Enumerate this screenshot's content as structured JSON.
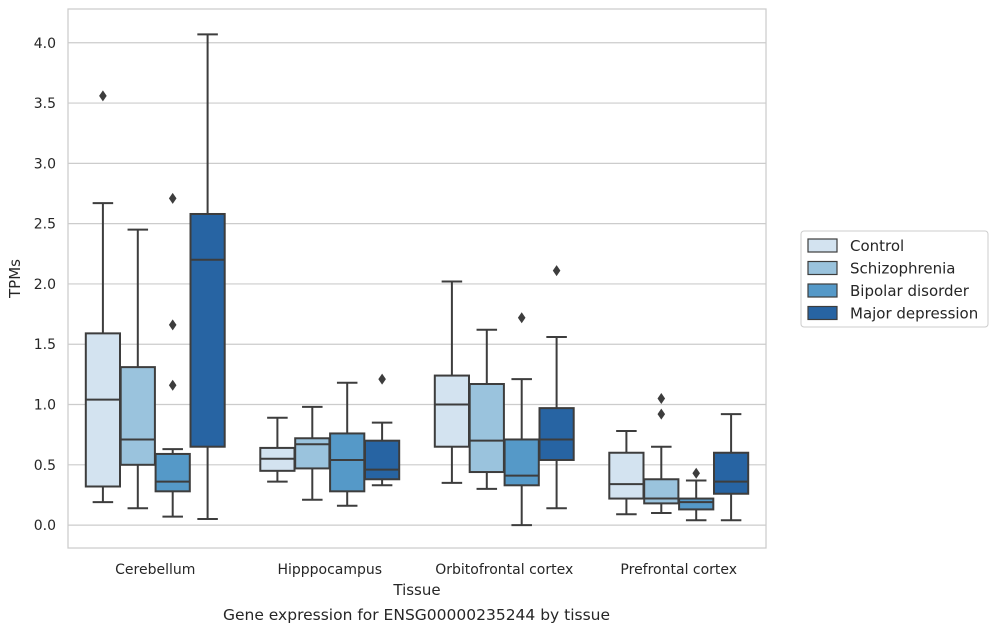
{
  "caption": "Gene expression for ENSG00000235244 by tissue",
  "chart_data": {
    "type": "boxplot",
    "xlabel": "Tissue",
    "ylabel": "TPMs",
    "ylim": [
      -0.19,
      4.28
    ],
    "yticks": [
      0.0,
      0.5,
      1.0,
      1.5,
      2.0,
      2.5,
      3.0,
      3.5,
      4.0
    ],
    "ytick_labels": [
      "0.0",
      "0.5",
      "1.0",
      "1.5",
      "2.0",
      "2.5",
      "3.0",
      "3.5",
      "4.0"
    ],
    "grid": "horizontal",
    "legend_placement": "right",
    "categories": [
      "Cerebellum",
      "Hipppocampus",
      "Orbitofrontal cortex",
      "Prefrontal cortex"
    ],
    "series": [
      {
        "name": "Control",
        "color": "#d3e3f0",
        "boxes": [
          {
            "whisker_low": 0.19,
            "q1": 0.32,
            "median": 1.04,
            "q3": 1.59,
            "whisker_high": 2.67,
            "outliers": [
              3.56
            ]
          },
          {
            "whisker_low": 0.36,
            "q1": 0.45,
            "median": 0.55,
            "q3": 0.64,
            "whisker_high": 0.89,
            "outliers": []
          },
          {
            "whisker_low": 0.35,
            "q1": 0.65,
            "median": 1.0,
            "q3": 1.24,
            "whisker_high": 2.02,
            "outliers": []
          },
          {
            "whisker_low": 0.09,
            "q1": 0.22,
            "median": 0.34,
            "q3": 0.6,
            "whisker_high": 0.78,
            "outliers": []
          }
        ]
      },
      {
        "name": "Schizophrenia",
        "color": "#9ac3dd",
        "boxes": [
          {
            "whisker_low": 0.14,
            "q1": 0.5,
            "median": 0.71,
            "q3": 1.31,
            "whisker_high": 2.45,
            "outliers": []
          },
          {
            "whisker_low": 0.21,
            "q1": 0.47,
            "median": 0.67,
            "q3": 0.72,
            "whisker_high": 0.98,
            "outliers": []
          },
          {
            "whisker_low": 0.3,
            "q1": 0.44,
            "median": 0.7,
            "q3": 1.17,
            "whisker_high": 1.62,
            "outliers": []
          },
          {
            "whisker_low": 0.1,
            "q1": 0.18,
            "median": 0.22,
            "q3": 0.38,
            "whisker_high": 0.65,
            "outliers": [
              0.92,
              1.05
            ]
          }
        ]
      },
      {
        "name": "Bipolar disorder",
        "color": "#5599c8",
        "boxes": [
          {
            "whisker_low": 0.07,
            "q1": 0.28,
            "median": 0.36,
            "q3": 0.59,
            "whisker_high": 0.63,
            "outliers": [
              1.16,
              1.66,
              2.71
            ]
          },
          {
            "whisker_low": 0.16,
            "q1": 0.28,
            "median": 0.54,
            "q3": 0.76,
            "whisker_high": 1.18,
            "outliers": []
          },
          {
            "whisker_low": 0.0,
            "q1": 0.33,
            "median": 0.41,
            "q3": 0.71,
            "whisker_high": 1.21,
            "outliers": [
              1.72
            ]
          },
          {
            "whisker_low": 0.04,
            "q1": 0.13,
            "median": 0.19,
            "q3": 0.22,
            "whisker_high": 0.37,
            "outliers": [
              0.43
            ]
          }
        ]
      },
      {
        "name": "Major depression",
        "color": "#2764a3",
        "boxes": [
          {
            "whisker_low": 0.05,
            "q1": 0.65,
            "median": 2.2,
            "q3": 2.58,
            "whisker_high": 4.07,
            "outliers": []
          },
          {
            "whisker_low": 0.33,
            "q1": 0.38,
            "median": 0.46,
            "q3": 0.7,
            "whisker_high": 0.85,
            "outliers": [
              1.21
            ]
          },
          {
            "whisker_low": 0.14,
            "q1": 0.54,
            "median": 0.71,
            "q3": 0.97,
            "whisker_high": 1.56,
            "outliers": [
              2.11
            ]
          },
          {
            "whisker_low": 0.04,
            "q1": 0.26,
            "median": 0.36,
            "q3": 0.6,
            "whisker_high": 0.92,
            "outliers": []
          }
        ]
      }
    ]
  }
}
